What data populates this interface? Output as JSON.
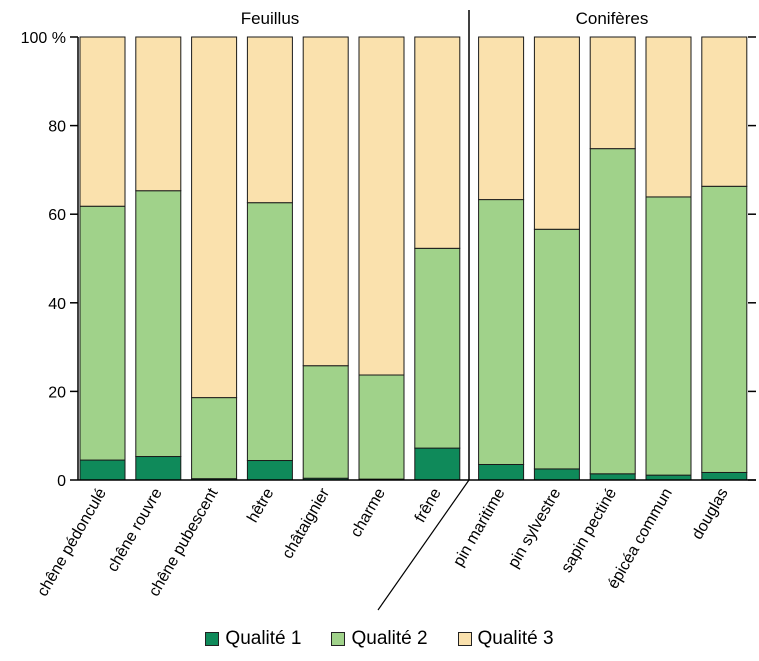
{
  "chart_data": {
    "type": "bar",
    "stacked": true,
    "groups": [
      {
        "label": "Feuillus",
        "categories": [
          "chêne pédonculé",
          "chêne rouvre",
          "chêne pubescent",
          "hêtre",
          "châtaignier",
          "charme",
          "frêne"
        ]
      },
      {
        "label": "Conifères",
        "categories": [
          "pin maritime",
          "pin sylvestre",
          "sapin pectiné",
          "épicéa commun",
          "douglas"
        ]
      }
    ],
    "categories": [
      "chêne pédonculé",
      "chêne rouvre",
      "chêne pubescent",
      "hêtre",
      "châtaignier",
      "charme",
      "frêne",
      "pin maritime",
      "pin sylvestre",
      "sapin pectiné",
      "épicéa commun",
      "douglas"
    ],
    "series": [
      {
        "name": "Qualité 1",
        "color": "#0f8a5a",
        "values": [
          4.5,
          5.3,
          0.3,
          4.4,
          0.4,
          0.2,
          7.2,
          3.5,
          2.5,
          1.4,
          1.1,
          1.7
        ]
      },
      {
        "name": "Qualité 2",
        "color": "#a0d28a",
        "values": [
          57.3,
          60.0,
          18.3,
          58.2,
          25.4,
          23.5,
          45.1,
          59.8,
          54.1,
          73.4,
          62.8,
          64.6
        ]
      },
      {
        "name": "Qualité 3",
        "color": "#fae1ad",
        "values": [
          38.2,
          34.7,
          81.4,
          37.4,
          74.2,
          76.3,
          47.7,
          36.7,
          43.4,
          25.2,
          36.1,
          33.7
        ]
      }
    ],
    "yticks": [
      "0",
      "20",
      "40",
      "60",
      "80",
      "100 %"
    ],
    "ylim": [
      0,
      100
    ],
    "grid": false,
    "legend_position": "bottom"
  }
}
